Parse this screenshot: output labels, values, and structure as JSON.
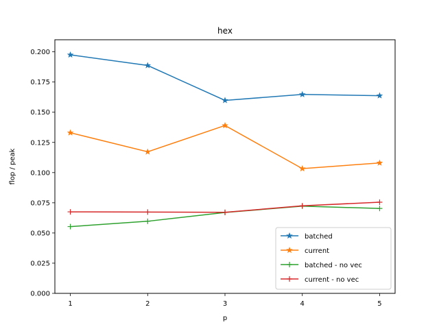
{
  "chart_data": {
    "type": "line",
    "title": "hex",
    "xlabel": "p",
    "ylabel": "flop / peak",
    "x": [
      1,
      2,
      3,
      4,
      5
    ],
    "xticks": [
      "1",
      "2",
      "3",
      "4",
      "5"
    ],
    "yticks": [
      "0.000",
      "0.025",
      "0.050",
      "0.075",
      "0.100",
      "0.125",
      "0.150",
      "0.175",
      "0.200"
    ],
    "ylim": [
      0.0,
      0.21
    ],
    "xlim": [
      0.8,
      5.2
    ],
    "grid": false,
    "legend_position": "lower right",
    "series": [
      {
        "name": "batched",
        "values": [
          0.1975,
          0.1887,
          0.1598,
          0.1647,
          0.1637
        ],
        "color": "#1f77b4",
        "marker": "star"
      },
      {
        "name": "current",
        "values": [
          0.133,
          0.1172,
          0.139,
          0.1033,
          0.108
        ],
        "color": "#ff7f0e",
        "marker": "star"
      },
      {
        "name": "batched - no vec",
        "values": [
          0.0553,
          0.0597,
          0.067,
          0.0722,
          0.0703
        ],
        "color": "#2ca02c",
        "marker": "plus"
      },
      {
        "name": "current - no vec",
        "values": [
          0.0675,
          0.0673,
          0.0671,
          0.0725,
          0.0755
        ],
        "color": "#d62728",
        "marker": "plus"
      }
    ]
  }
}
